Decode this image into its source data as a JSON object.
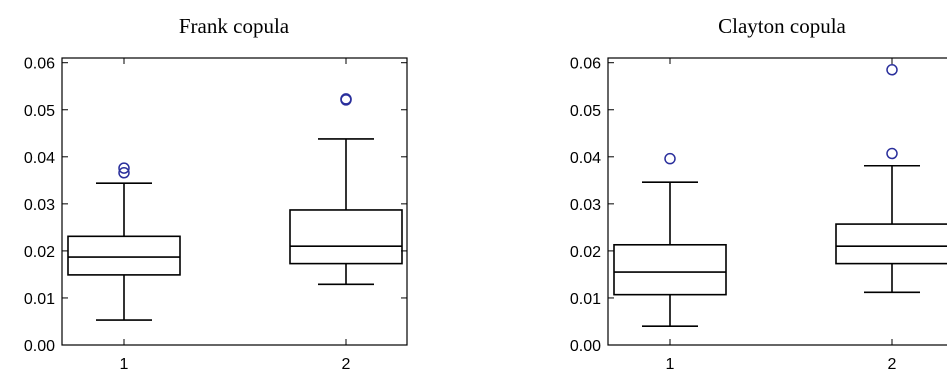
{
  "chart_data": [
    {
      "type": "box",
      "title": "Frank copula",
      "xlabel": "",
      "ylabel": "",
      "ylim": [
        0,
        0.061
      ],
      "yticks": [
        "0.00",
        "0.01",
        "0.02",
        "0.03",
        "0.04",
        "0.05",
        "0.06"
      ],
      "categories": [
        "1",
        "2"
      ],
      "boxes": [
        {
          "category": "1",
          "whisker_low": 0.0053,
          "q1": 0.0149,
          "median": 0.0187,
          "q3": 0.0231,
          "whisker_high": 0.0344,
          "outliers": [
            0.0366,
            0.0376
          ]
        },
        {
          "category": "2",
          "whisker_low": 0.0129,
          "q1": 0.0173,
          "median": 0.021,
          "q3": 0.0287,
          "whisker_high": 0.0438,
          "outliers": [
            0.0521,
            0.0523
          ]
        }
      ],
      "grid": false,
      "outlier_color": "#2a2f9c"
    },
    {
      "type": "box",
      "title": "Clayton copula",
      "xlabel": "",
      "ylabel": "",
      "ylim": [
        0,
        0.061
      ],
      "yticks": [
        "0.00",
        "0.01",
        "0.02",
        "0.03",
        "0.04",
        "0.05",
        "0.06"
      ],
      "categories": [
        "1",
        "2"
      ],
      "boxes": [
        {
          "category": "1",
          "whisker_low": 0.004,
          "q1": 0.0107,
          "median": 0.0155,
          "q3": 0.0213,
          "whisker_high": 0.0346,
          "outliers": [
            0.0396
          ]
        },
        {
          "category": "2",
          "whisker_low": 0.0112,
          "q1": 0.0173,
          "median": 0.021,
          "q3": 0.0257,
          "whisker_high": 0.0381,
          "outliers": [
            0.0407,
            0.0585
          ]
        }
      ],
      "grid": false,
      "outlier_color": "#2a2f9c"
    }
  ]
}
